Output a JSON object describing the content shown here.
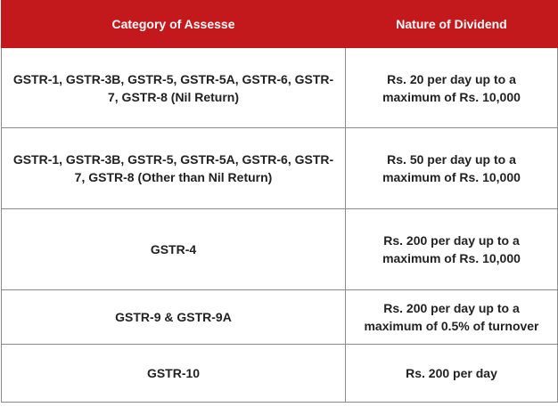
{
  "table": {
    "headers": [
      "Category of Assesse",
      "Nature of Dividend"
    ],
    "rows": [
      [
        "GSTR-1, GSTR-3B, GSTR-5, GSTR-5A, GSTR-6, GSTR-7, GSTR-8 (Nil Return)",
        "Rs. 20 per day up to a maximum of Rs. 10,000"
      ],
      [
        "GSTR-1, GSTR-3B, GSTR-5, GSTR-5A, GSTR-6, GSTR-7, GSTR-8 (Other than Nil Return)",
        "Rs. 50 per day up to a maximum of Rs. 10,000"
      ],
      [
        "GSTR-4",
        "Rs. 200 per day up to a maximum of Rs. 10,000"
      ],
      [
        "GSTR-9 & GSTR-9A",
        "Rs. 200 per day up to a maximum of 0.5% of turnover"
      ],
      [
        "GSTR-10",
        "Rs. 200 per day"
      ]
    ]
  },
  "colors": {
    "header_bg": "#c3191d",
    "header_text": "#ffffff",
    "border": "#8a8a8a",
    "body_text": "#222222"
  }
}
